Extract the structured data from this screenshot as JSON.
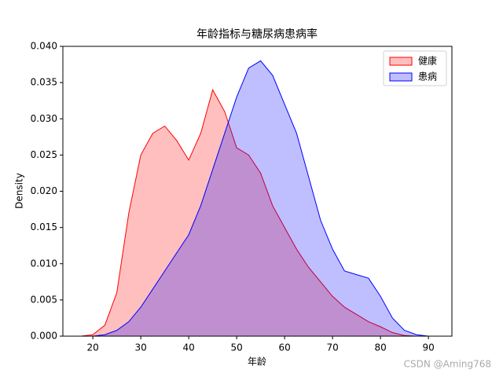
{
  "chart_data": {
    "type": "kde",
    "title": "年龄指标与糖尿病患病率",
    "xlabel": "年龄",
    "ylabel": "Density",
    "x": [
      17.5,
      20,
      22.5,
      25,
      27.5,
      30,
      32.5,
      35,
      37.5,
      40,
      42.5,
      45,
      47.5,
      50,
      52.5,
      55,
      57.5,
      60,
      62.5,
      65,
      67.5,
      70,
      72.5,
      75,
      77.5,
      80,
      82.5,
      85,
      87.5,
      90
    ],
    "series": [
      {
        "name": "健康",
        "color": "#ff0000",
        "values": [
          0,
          0.0002,
          0.0015,
          0.006,
          0.017,
          0.025,
          0.028,
          0.029,
          0.027,
          0.0243,
          0.028,
          0.034,
          0.031,
          0.026,
          0.025,
          0.0225,
          0.018,
          0.015,
          0.012,
          0.0095,
          0.0075,
          0.0055,
          0.004,
          0.003,
          0.002,
          0.0013,
          0.0005,
          0.0001,
          0,
          0
        ]
      },
      {
        "name": "患病",
        "color": "#0000ff",
        "values": [
          0,
          0,
          0.0002,
          0.0008,
          0.002,
          0.004,
          0.0065,
          0.009,
          0.0115,
          0.014,
          0.018,
          0.023,
          0.028,
          0.033,
          0.037,
          0.038,
          0.036,
          0.032,
          0.028,
          0.022,
          0.016,
          0.012,
          0.009,
          0.0085,
          0.008,
          0.0055,
          0.0025,
          0.0008,
          0.0002,
          0
        ]
      }
    ],
    "xlim": [
      13.75,
      94.9
    ],
    "ylim": [
      0,
      0.04
    ],
    "xticks": [
      20,
      30,
      40,
      50,
      60,
      70,
      80,
      90
    ],
    "yticks": [
      {
        "value": 0,
        "label": "0.000"
      },
      {
        "value": 0.005,
        "label": "0.005"
      },
      {
        "value": 0.01,
        "label": "0.010"
      },
      {
        "value": 0.015,
        "label": "0.015"
      },
      {
        "value": 0.02,
        "label": "0.020"
      },
      {
        "value": 0.025,
        "label": "0.025"
      },
      {
        "value": 0.03,
        "label": "0.030"
      },
      {
        "value": 0.035,
        "label": "0.035"
      },
      {
        "value": 0.04,
        "label": "0.040"
      }
    ],
    "legend": "upper right",
    "watermark": "CSDN @Aming768"
  }
}
